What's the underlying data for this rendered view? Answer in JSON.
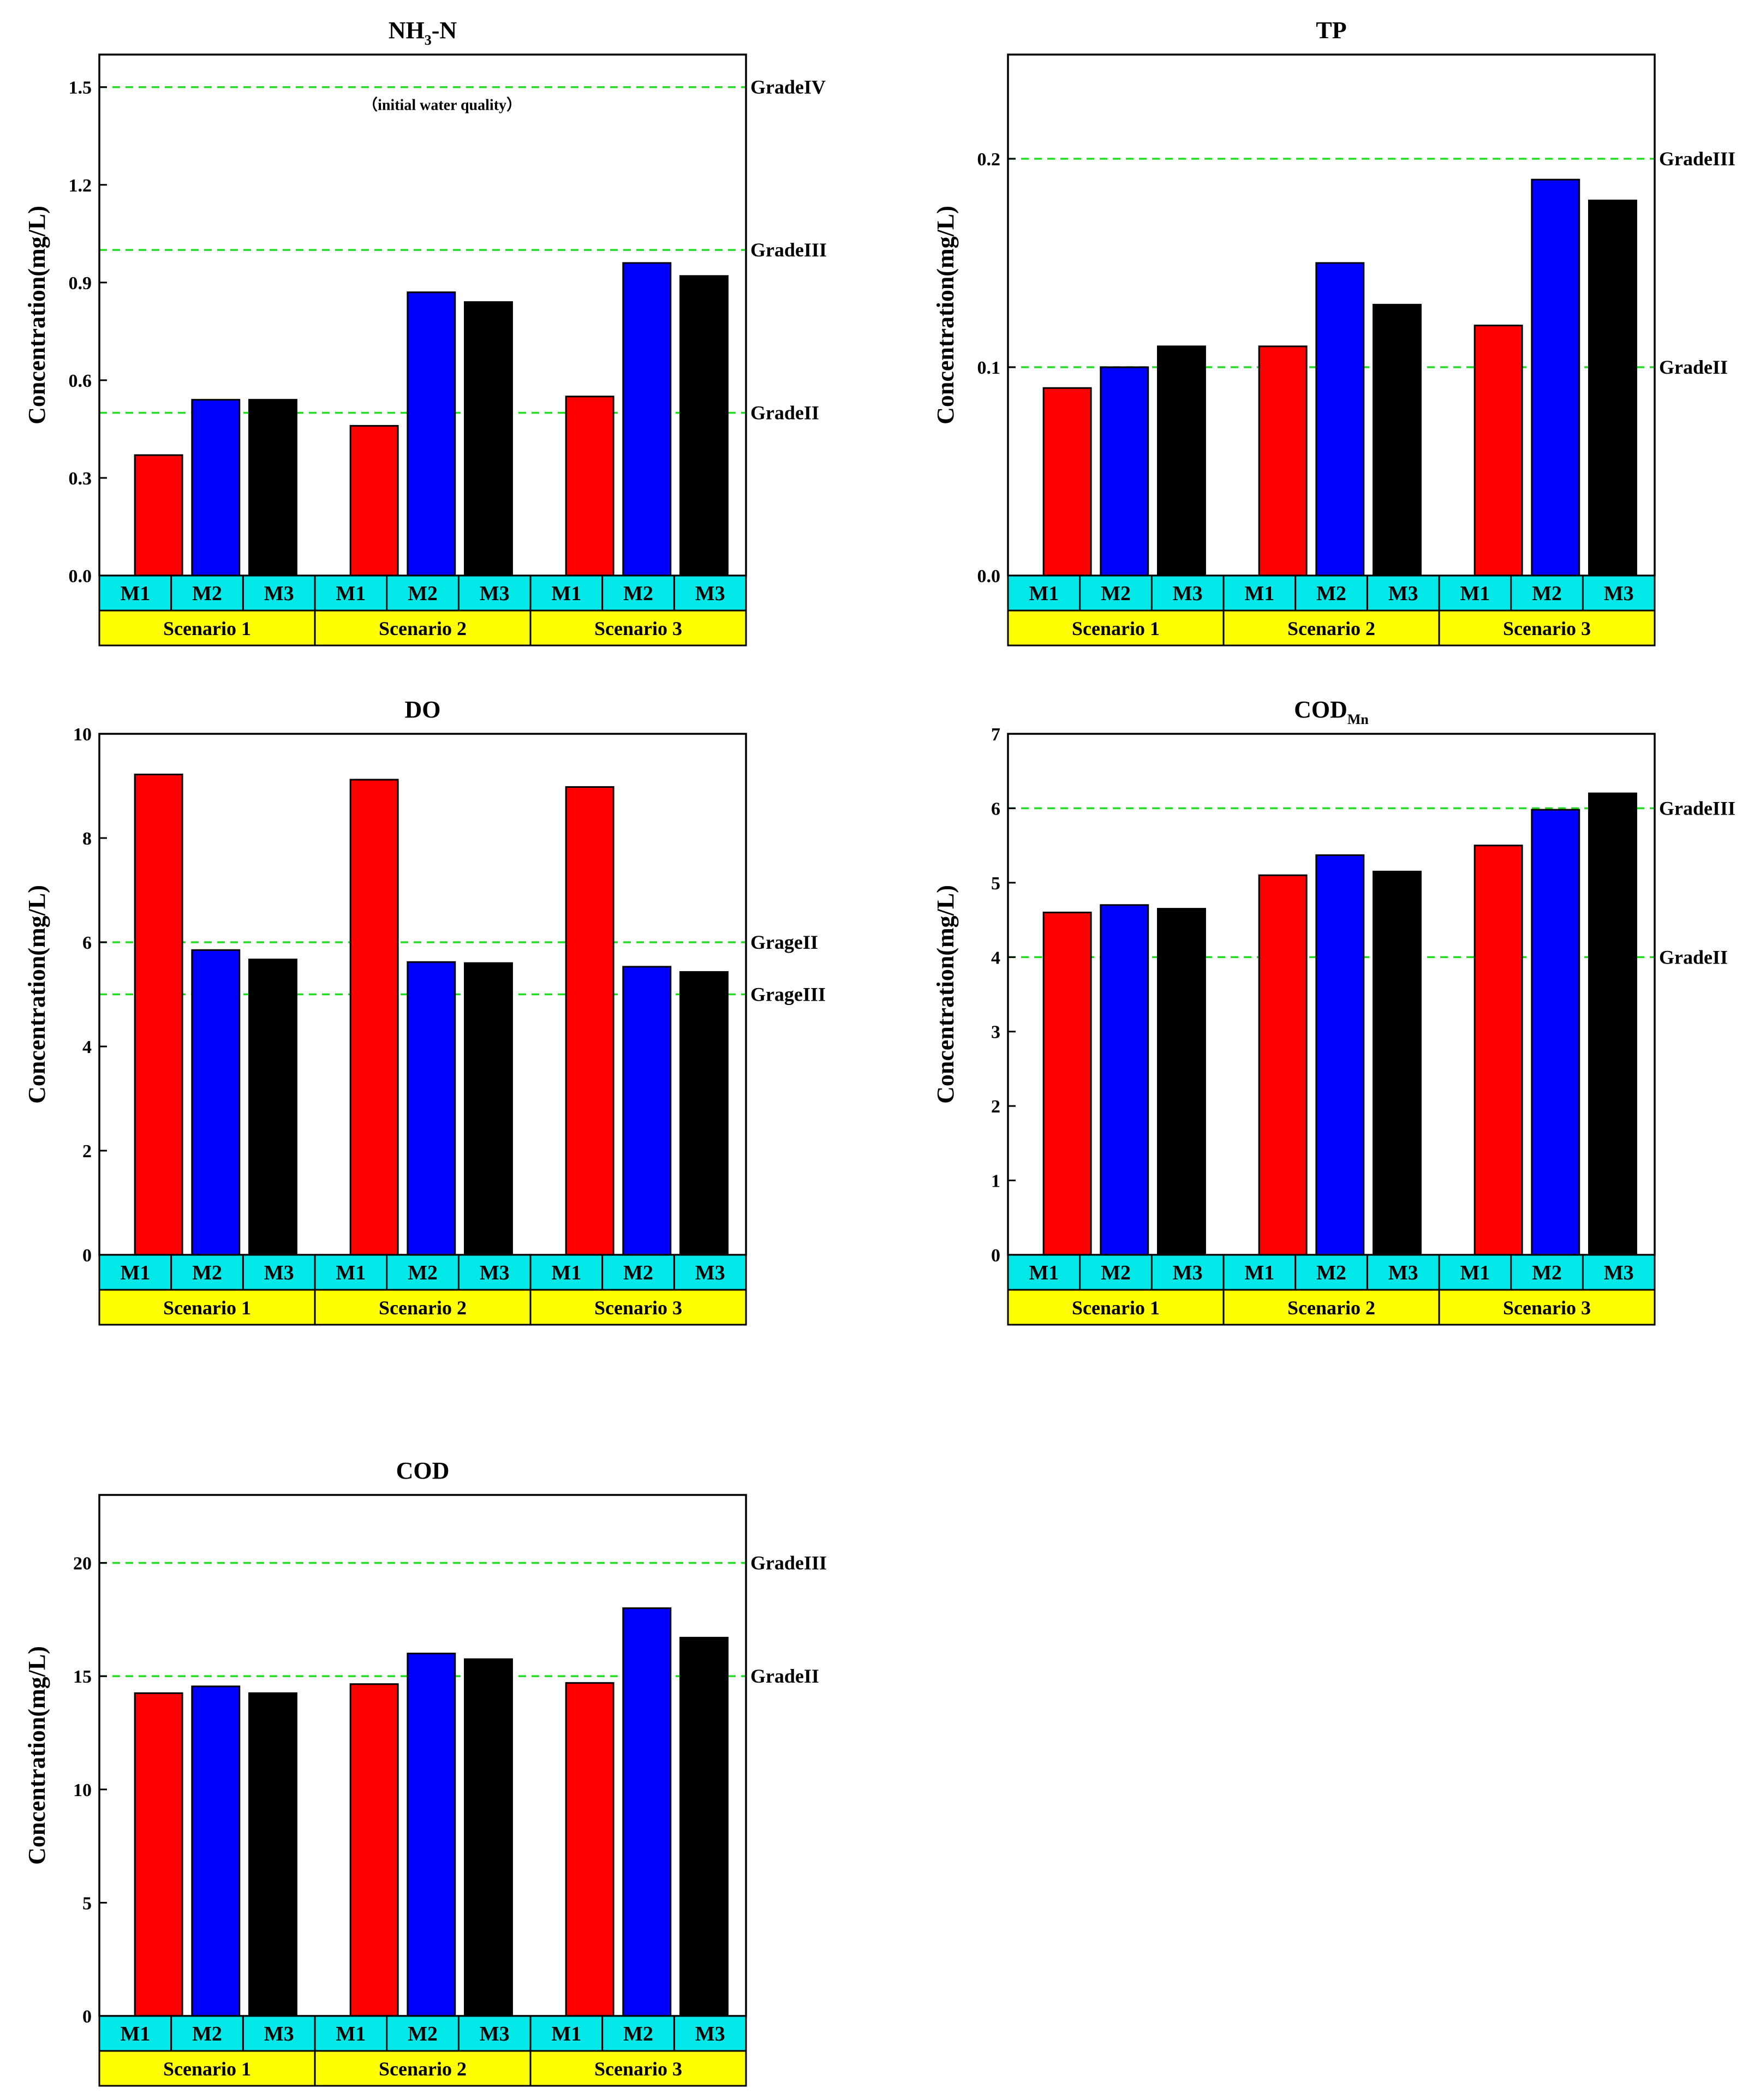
{
  "figure": {
    "categories": [
      "M1",
      "M2",
      "M3"
    ],
    "groups": [
      "Scenario 1",
      "Scenario 2",
      "Scenario 3"
    ],
    "colors": {
      "series": [
        "#ff0000",
        "#0000ff",
        "#000000"
      ],
      "reference": "#22dd22",
      "category_band": "#00e8e8",
      "group_band": "#ffff00"
    }
  },
  "chart_data": [
    {
      "type": "bar",
      "title": "NH",
      "title_sub": "3",
      "title_tail": "-N",
      "ylabel": "Concentration(mg/L)",
      "ylim": [
        0,
        1.6
      ],
      "yticks": [
        "0.0",
        "0.3",
        "0.6",
        "0.9",
        "1.2",
        "1.5"
      ],
      "ytick_values": [
        0,
        0.3,
        0.6,
        0.9,
        1.2,
        1.5
      ],
      "categories": [
        "M1",
        "M2",
        "M3"
      ],
      "groups": [
        "Scenario 1",
        "Scenario 2",
        "Scenario 3"
      ],
      "series": [
        {
          "name": "M1",
          "values": [
            0.37,
            0.46,
            0.55
          ]
        },
        {
          "name": "M2",
          "values": [
            0.54,
            0.87,
            0.96
          ]
        },
        {
          "name": "M3",
          "values": [
            0.54,
            0.84,
            0.92
          ]
        }
      ],
      "reference_lines": [
        {
          "value": 1.5,
          "label": "GradeIV"
        },
        {
          "value": 1.0,
          "label": "GradeIII"
        },
        {
          "value": 0.5,
          "label": "GradeII"
        }
      ],
      "annotation": {
        "text": "（initial water quality）",
        "value": 1.45
      }
    },
    {
      "type": "bar",
      "title": "TP",
      "title_sub": "",
      "title_tail": "",
      "ylabel": "Concentration(mg/L)",
      "ylim": [
        0,
        0.25
      ],
      "yticks": [
        "0.0",
        "0.1",
        "0.2"
      ],
      "ytick_values": [
        0,
        0.1,
        0.2
      ],
      "categories": [
        "M1",
        "M2",
        "M3"
      ],
      "groups": [
        "Scenario 1",
        "Scenario 2",
        "Scenario 3"
      ],
      "series": [
        {
          "name": "M1",
          "values": [
            0.09,
            0.11,
            0.12
          ]
        },
        {
          "name": "M2",
          "values": [
            0.1,
            0.15,
            0.19
          ]
        },
        {
          "name": "M3",
          "values": [
            0.11,
            0.13,
            0.18
          ]
        }
      ],
      "reference_lines": [
        {
          "value": 0.2,
          "label": "GradeIII"
        },
        {
          "value": 0.1,
          "label": "GradeII"
        }
      ]
    },
    {
      "type": "bar",
      "title": "DO",
      "title_sub": "",
      "title_tail": "",
      "ylabel": "Concentration(mg/L)",
      "ylim": [
        0,
        10
      ],
      "yticks": [
        "0",
        "2",
        "4",
        "6",
        "8",
        "10"
      ],
      "ytick_values": [
        0,
        2,
        4,
        6,
        8,
        10
      ],
      "categories": [
        "M1",
        "M2",
        "M3"
      ],
      "groups": [
        "Scenario 1",
        "Scenario 2",
        "Scenario 3"
      ],
      "series": [
        {
          "name": "M1",
          "values": [
            9.22,
            9.12,
            8.98
          ]
        },
        {
          "name": "M2",
          "values": [
            5.85,
            5.62,
            5.53
          ]
        },
        {
          "name": "M3",
          "values": [
            5.67,
            5.6,
            5.43
          ]
        }
      ],
      "reference_lines": [
        {
          "value": 6,
          "label": "GrageII"
        },
        {
          "value": 5,
          "label": "GrageIII"
        }
      ]
    },
    {
      "type": "bar",
      "title": "COD",
      "title_sub": "Mn",
      "title_tail": "",
      "ylabel": "Concentration(mg/L)",
      "ylim": [
        0,
        7
      ],
      "yticks": [
        "0",
        "1",
        "2",
        "3",
        "4",
        "5",
        "6",
        "7"
      ],
      "ytick_values": [
        0,
        1,
        2,
        3,
        4,
        5,
        6,
        7
      ],
      "categories": [
        "M1",
        "M2",
        "M3"
      ],
      "groups": [
        "Scenario 1",
        "Scenario 2",
        "Scenario 3"
      ],
      "series": [
        {
          "name": "M1",
          "values": [
            4.6,
            5.1,
            5.5
          ]
        },
        {
          "name": "M2",
          "values": [
            4.7,
            5.37,
            5.98
          ]
        },
        {
          "name": "M3",
          "values": [
            4.65,
            5.15,
            6.2
          ]
        }
      ],
      "reference_lines": [
        {
          "value": 6,
          "label": "GradeIII"
        },
        {
          "value": 4,
          "label": "GradeII"
        }
      ]
    },
    {
      "type": "bar",
      "title": "COD",
      "title_sub": "",
      "title_tail": "",
      "ylabel": "Concentration(mg/L)",
      "ylim": [
        0,
        23
      ],
      "yticks": [
        "0",
        "5",
        "10",
        "15",
        "20"
      ],
      "ytick_values": [
        0,
        5,
        10,
        15,
        20
      ],
      "categories": [
        "M1",
        "M2",
        "M3"
      ],
      "groups": [
        "Scenario 1",
        "Scenario 2",
        "Scenario 3"
      ],
      "series": [
        {
          "name": "M1",
          "values": [
            14.25,
            14.65,
            14.7
          ]
        },
        {
          "name": "M2",
          "values": [
            14.55,
            16.0,
            18.0
          ]
        },
        {
          "name": "M3",
          "values": [
            14.25,
            15.75,
            16.7
          ]
        }
      ],
      "reference_lines": [
        {
          "value": 20,
          "label": "GradeIII"
        },
        {
          "value": 15,
          "label": "GradeII"
        }
      ]
    }
  ]
}
